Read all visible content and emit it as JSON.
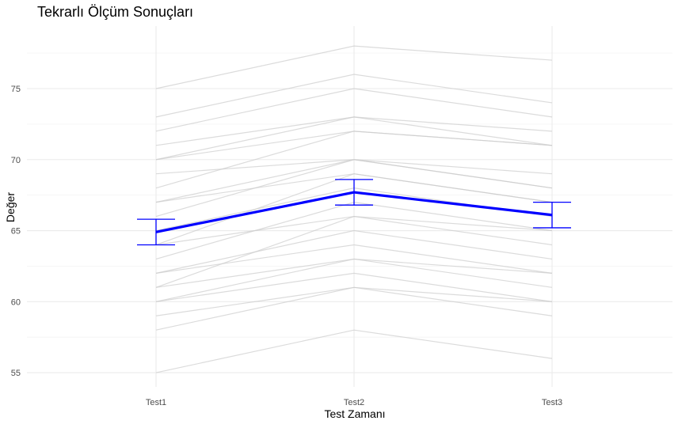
{
  "chart_data": {
    "type": "line",
    "title": "Tekrarlı Ölçüm Sonuçları",
    "xlabel": "Test Zamanı",
    "ylabel": "Değer",
    "categories": [
      "Test1",
      "Test2",
      "Test3"
    ],
    "ylim": [
      54.0,
      79.4
    ],
    "yticks": [
      55,
      60,
      65,
      70,
      75
    ],
    "grid": true,
    "individual_series": [
      {
        "values": [
          75,
          78,
          77
        ]
      },
      {
        "values": [
          73,
          76,
          74
        ]
      },
      {
        "values": [
          72,
          75,
          73
        ]
      },
      {
        "values": [
          71,
          73,
          72
        ]
      },
      {
        "values": [
          70,
          72,
          71
        ]
      },
      {
        "values": [
          70,
          73,
          71
        ]
      },
      {
        "values": [
          69,
          70,
          68
        ]
      },
      {
        "values": [
          68,
          72,
          71
        ]
      },
      {
        "values": [
          67,
          70,
          69
        ]
      },
      {
        "values": [
          67,
          69,
          67
        ]
      },
      {
        "values": [
          66,
          70,
          68
        ]
      },
      {
        "values": [
          65,
          68,
          66
        ]
      },
      {
        "values": [
          64,
          69,
          67
        ]
      },
      {
        "values": [
          64,
          66,
          64
        ]
      },
      {
        "values": [
          63,
          67,
          65
        ]
      },
      {
        "values": [
          62,
          65,
          63
        ]
      },
      {
        "values": [
          62,
          64,
          62
        ]
      },
      {
        "values": [
          61,
          66,
          65
        ]
      },
      {
        "values": [
          61,
          63,
          62
        ]
      },
      {
        "values": [
          60,
          62,
          60
        ]
      },
      {
        "values": [
          60,
          63,
          61
        ]
      },
      {
        "values": [
          59,
          61,
          60
        ]
      },
      {
        "values": [
          58,
          61,
          59
        ]
      },
      {
        "values": [
          55,
          58,
          56
        ]
      }
    ],
    "mean_series": {
      "values": [
        64.9,
        67.7,
        66.1
      ],
      "error_low": [
        64.0,
        66.8,
        65.2
      ],
      "error_high": [
        65.8,
        68.6,
        67.0
      ]
    },
    "colors": {
      "individual": "#cccccc",
      "mean": "#0000ff",
      "grid_major": "#ebebeb",
      "grid_minor": "#f4f4f4"
    }
  }
}
